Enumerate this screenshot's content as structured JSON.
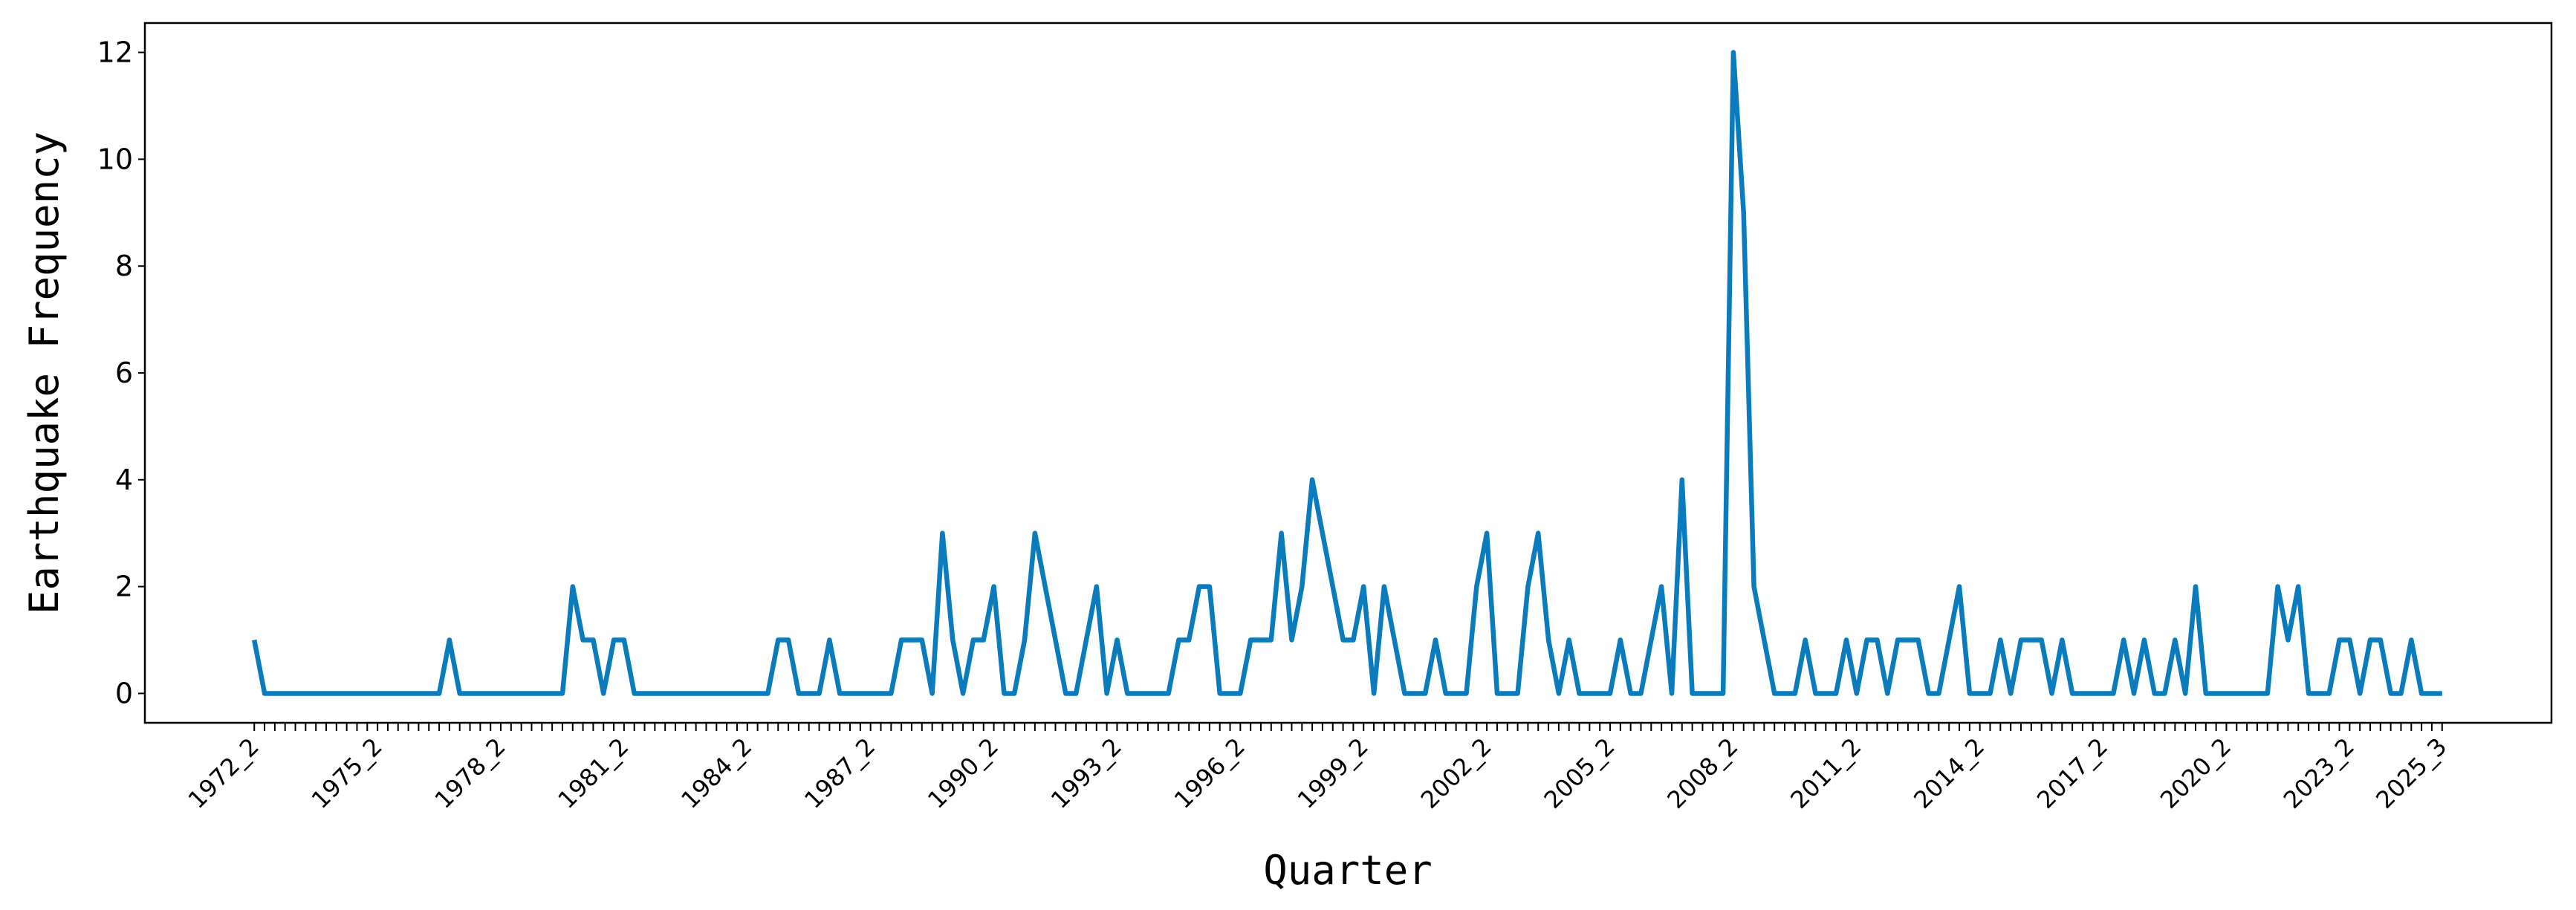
{
  "chart_data": {
    "type": "line",
    "x_label": "Quarter",
    "y_label": "Earthquake Frequency",
    "categories": [
      "1972_2",
      null,
      null,
      null,
      null,
      null,
      null,
      null,
      null,
      null,
      null,
      null,
      "1975_2",
      null,
      null,
      null,
      null,
      null,
      null,
      null,
      null,
      null,
      null,
      null,
      "1978_2",
      null,
      null,
      null,
      null,
      null,
      null,
      null,
      null,
      null,
      null,
      null,
      "1981_2",
      null,
      null,
      null,
      null,
      null,
      null,
      null,
      null,
      null,
      null,
      null,
      "1984_2",
      null,
      null,
      null,
      null,
      null,
      null,
      null,
      null,
      null,
      null,
      null,
      "1987_2",
      null,
      null,
      null,
      null,
      null,
      null,
      null,
      null,
      null,
      null,
      null,
      "1990_2",
      null,
      null,
      null,
      null,
      null,
      null,
      null,
      null,
      null,
      null,
      null,
      "1993_2",
      null,
      null,
      null,
      null,
      null,
      null,
      null,
      null,
      null,
      null,
      null,
      "1996_2",
      null,
      null,
      null,
      null,
      null,
      null,
      null,
      null,
      null,
      null,
      null,
      "1999_2",
      null,
      null,
      null,
      null,
      null,
      null,
      null,
      null,
      null,
      null,
      null,
      "2002_2",
      null,
      null,
      null,
      null,
      null,
      null,
      null,
      null,
      null,
      null,
      null,
      "2005_2",
      null,
      null,
      null,
      null,
      null,
      null,
      null,
      null,
      null,
      null,
      null,
      "2008_2",
      null,
      null,
      null,
      null,
      null,
      null,
      null,
      null,
      null,
      null,
      null,
      "2011_2",
      null,
      null,
      null,
      null,
      null,
      null,
      null,
      null,
      null,
      null,
      null,
      "2014_2",
      null,
      null,
      null,
      null,
      null,
      null,
      null,
      null,
      null,
      null,
      null,
      "2017_2",
      null,
      null,
      null,
      null,
      null,
      null,
      null,
      null,
      null,
      null,
      null,
      "2020_2",
      null,
      null,
      null,
      null,
      null,
      null,
      null,
      null,
      null,
      null,
      null,
      "2023_2",
      null,
      null,
      null,
      null,
      null,
      null,
      null,
      null,
      "2025_3"
    ],
    "series": [
      {
        "name": "Earthquake Frequency",
        "color": "#0a7bbd",
        "values": [
          1,
          0,
          0,
          0,
          0,
          0,
          0,
          0,
          0,
          0,
          0,
          0,
          0,
          0,
          0,
          0,
          0,
          0,
          0,
          1,
          0,
          0,
          0,
          0,
          0,
          0,
          0,
          0,
          0,
          0,
          0,
          2,
          1,
          1,
          0,
          1,
          1,
          0,
          0,
          0,
          0,
          0,
          0,
          0,
          0,
          0,
          0,
          0,
          0,
          0,
          0,
          1,
          1,
          0,
          0,
          0,
          1,
          0,
          0,
          0,
          0,
          0,
          0,
          1,
          1,
          1,
          0,
          3,
          1,
          0,
          1,
          1,
          2,
          0,
          0,
          1,
          3,
          2,
          1,
          0,
          0,
          1,
          2,
          0,
          1,
          0,
          0,
          0,
          0,
          0,
          1,
          1,
          2,
          2,
          0,
          0,
          0,
          1,
          1,
          1,
          3,
          1,
          2,
          4,
          3,
          2,
          1,
          1,
          2,
          0,
          2,
          1,
          0,
          0,
          0,
          1,
          0,
          0,
          0,
          2,
          3,
          0,
          0,
          0,
          2,
          3,
          1,
          0,
          1,
          0,
          0,
          0,
          0,
          1,
          0,
          0,
          1,
          2,
          0,
          4,
          0,
          0,
          0,
          0,
          12,
          9,
          2,
          1,
          0,
          0,
          0,
          1,
          0,
          0,
          0,
          1,
          0,
          1,
          1,
          0,
          1,
          1,
          1,
          0,
          0,
          1,
          2,
          0,
          0,
          0,
          1,
          0,
          1,
          1,
          1,
          0,
          1,
          0,
          0,
          0,
          0,
          0,
          1,
          0,
          1,
          0,
          0,
          1,
          0,
          2,
          0,
          0,
          0,
          0,
          0,
          0,
          0,
          2,
          1,
          2,
          0,
          0,
          0,
          1,
          1,
          0,
          1,
          1,
          0,
          0,
          1,
          0,
          0,
          0
        ]
      }
    ],
    "ylim": [
      -0.55,
      12.55
    ],
    "yticks": [
      0,
      2,
      4,
      6,
      8,
      10,
      12
    ],
    "grid": false
  }
}
